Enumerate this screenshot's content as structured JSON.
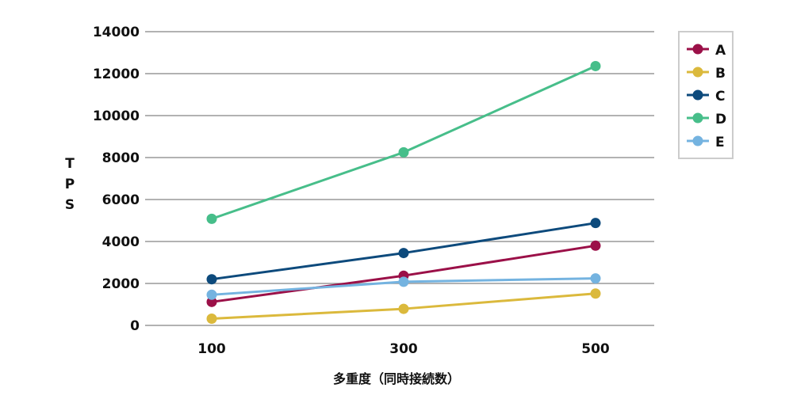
{
  "chart_data": {
    "type": "line",
    "title": "",
    "xlabel": "多重度（同時接続数）",
    "ylabel": "TPS",
    "categories": [
      "100",
      "300",
      "500"
    ],
    "ylim": [
      0,
      14000
    ],
    "yticks": [
      "0",
      "2000",
      "4000",
      "6000",
      "8000",
      "10000",
      "12000",
      "14000"
    ],
    "grid": true,
    "legend_position": "right",
    "series": [
      {
        "name": "A",
        "color": "#9b1048",
        "values": [
          1120,
          2370,
          3800
        ]
      },
      {
        "name": "B",
        "color": "#dbb93c",
        "values": [
          320,
          790,
          1520
        ]
      },
      {
        "name": "C",
        "color": "#0d4a7c",
        "values": [
          2200,
          3450,
          4880
        ]
      },
      {
        "name": "D",
        "color": "#47be8a",
        "values": [
          5080,
          8250,
          12360
        ]
      },
      {
        "name": "E",
        "color": "#74b3e0",
        "values": [
          1460,
          2080,
          2240
        ]
      }
    ]
  }
}
